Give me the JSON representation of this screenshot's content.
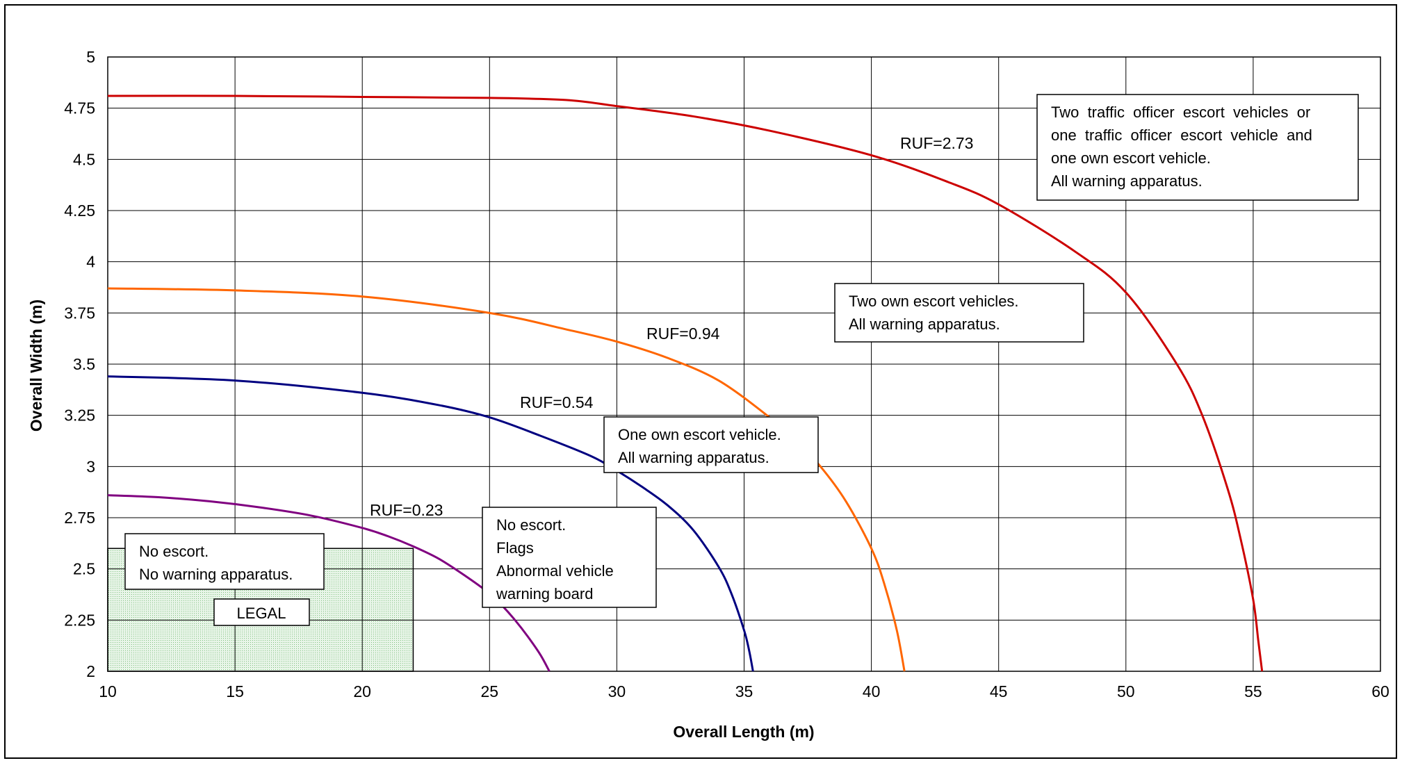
{
  "chart_data": {
    "type": "line",
    "title": "",
    "xlabel": "Overall Length (m)",
    "ylabel": "Overall Width (m)",
    "xlim": [
      10,
      60
    ],
    "ylim": [
      2,
      5
    ],
    "x_ticks": [
      10,
      15,
      20,
      25,
      30,
      35,
      40,
      45,
      50,
      55,
      60
    ],
    "y_ticks": [
      "2",
      "2.25",
      "2.5",
      "2.75",
      "3",
      "3.25",
      "3.5",
      "3.75",
      "4",
      "4.25",
      "4.5",
      "4.75",
      "5"
    ],
    "grid": true,
    "series": [
      {
        "name": "RUF=0.23",
        "color": "#800080",
        "x": [
          10,
          12,
          14,
          16,
          18,
          20,
          21,
          22,
          23,
          24,
          25,
          25.5,
          26,
          26.5,
          27,
          27.35
        ],
        "y": [
          2.86,
          2.85,
          2.83,
          2.8,
          2.76,
          2.7,
          2.66,
          2.61,
          2.55,
          2.47,
          2.38,
          2.32,
          2.25,
          2.17,
          2.08,
          2.0
        ]
      },
      {
        "name": "RUF=0.54",
        "color": "#000080",
        "x": [
          10,
          15,
          20,
          23,
          25,
          27,
          29,
          30,
          31,
          32,
          33,
          34,
          34.5,
          35,
          35.2,
          35.35
        ],
        "y": [
          3.44,
          3.42,
          3.36,
          3.3,
          3.24,
          3.15,
          3.05,
          2.98,
          2.9,
          2.81,
          2.69,
          2.51,
          2.38,
          2.2,
          2.1,
          2.0
        ]
      },
      {
        "name": "RUF=0.94",
        "color": "#FF6600",
        "x": [
          10,
          15,
          20,
          25,
          28,
          30,
          32,
          34,
          36,
          37,
          38,
          39,
          40,
          40.5,
          41,
          41.3
        ],
        "y": [
          3.87,
          3.86,
          3.83,
          3.75,
          3.67,
          3.61,
          3.53,
          3.42,
          3.24,
          3.13,
          3.0,
          2.83,
          2.6,
          2.43,
          2.2,
          2.0
        ]
      },
      {
        "name": "RUF=2.73",
        "color": "#CC0000",
        "x": [
          10,
          15,
          20,
          25,
          28,
          30,
          33,
          36,
          40,
          43,
          45,
          48,
          50,
          52,
          53,
          54,
          54.5,
          55,
          55.2,
          55.35
        ],
        "y": [
          4.81,
          4.81,
          4.805,
          4.8,
          4.79,
          4.76,
          4.71,
          4.64,
          4.52,
          4.39,
          4.28,
          4.05,
          3.85,
          3.5,
          3.25,
          2.89,
          2.65,
          2.35,
          2.15,
          2.0
        ]
      }
    ],
    "series_labels": [
      {
        "text": "RUF=0.23",
        "x": 13.0,
        "y": 2.78
      },
      {
        "text": "RUF=0.54",
        "x": 22.0,
        "y": 3.26
      },
      {
        "text": "RUF=0.94",
        "x": 25.0,
        "y": 3.74
      },
      {
        "text": "RUF=2.73",
        "x": 38.0,
        "y": 4.56
      }
    ],
    "legal_region": {
      "label": "LEGAL",
      "x_range": [
        10,
        22
      ],
      "y_range": [
        2,
        2.6
      ]
    },
    "annotations": [
      {
        "lines": [
          "No escort.",
          "No warning apparatus."
        ]
      },
      {
        "lines": [
          "No escort.",
          "Flags",
          "Abnormal vehicle",
          "warning board"
        ]
      },
      {
        "lines": [
          "One own escort vehicle.",
          "All warning apparatus."
        ]
      },
      {
        "lines": [
          "Two own escort vehicles.",
          "All warning apparatus."
        ]
      },
      {
        "lines": [
          "Two  traffic  officer  escort  vehicles  or",
          "one  traffic  officer  escort  vehicle  and",
          "one own escort vehicle.",
          "All warning apparatus."
        ]
      }
    ]
  }
}
